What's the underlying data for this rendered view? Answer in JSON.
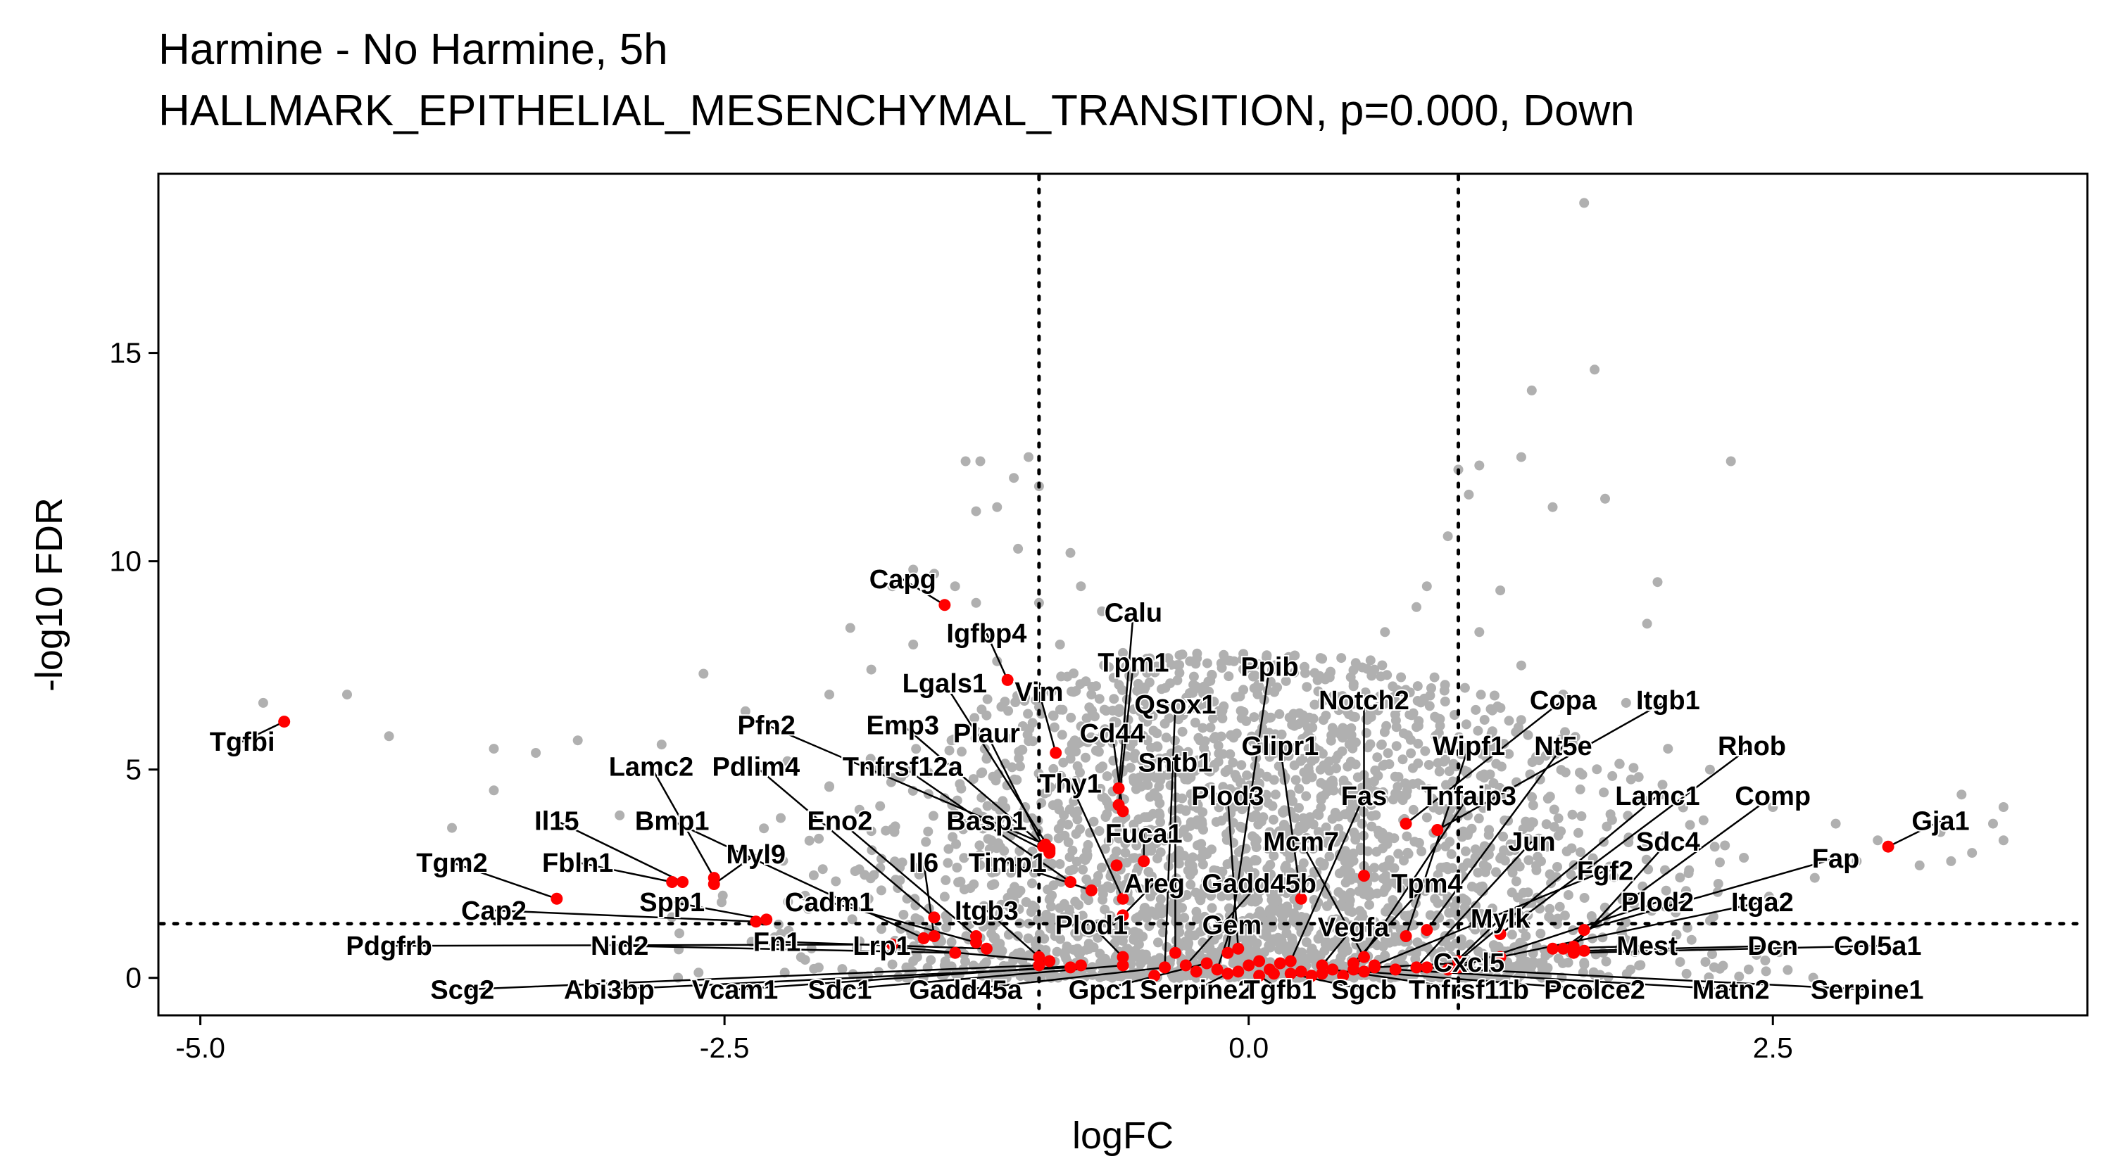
{
  "chart_data": {
    "type": "scatter",
    "title": "Harmine - No Harmine, 5h",
    "subtitle": "HALLMARK_EPITHELIAL_MESENCHYMAL_TRANSITION, p=0.000, Down",
    "xlabel": "logFC",
    "ylabel": "-log10 FDR",
    "xlim": [
      -5.2,
      4.0
    ],
    "ylim": [
      -0.9,
      19.3
    ],
    "x_ticks": [
      -5.0,
      -2.5,
      0.0,
      2.5
    ],
    "x_tick_labels": [
      "-5.0",
      "-2.5",
      "0.0",
      "2.5"
    ],
    "y_ticks": [
      0,
      5,
      10,
      15
    ],
    "y_tick_labels": [
      "0",
      "5",
      "10",
      "15"
    ],
    "thresholds": {
      "logfc": [
        -1.0,
        1.0
      ],
      "neg_log10_fdr": 1.3
    },
    "grid": false,
    "background_color": "#b0b0b0",
    "highlight_color": "#ff0000",
    "background_points": [
      [
        -4.7,
        6.6
      ],
      [
        -4.3,
        6.8
      ],
      [
        -4.1,
        5.8
      ],
      [
        -3.8,
        3.6
      ],
      [
        -3.6,
        5.5
      ],
      [
        -3.4,
        5.4
      ],
      [
        -3.6,
        4.5
      ],
      [
        -3.2,
        5.7
      ],
      [
        -3.0,
        3.9
      ],
      [
        -2.8,
        5.6
      ],
      [
        -2.6,
        7.3
      ],
      [
        -2.4,
        6.4
      ],
      [
        -2.2,
        5.2
      ],
      [
        -2.0,
        4.6
      ],
      [
        -1.9,
        8.4
      ],
      [
        -1.7,
        9.4
      ],
      [
        -1.6,
        9.8
      ],
      [
        -1.5,
        9.7
      ],
      [
        -1.4,
        9.4
      ],
      [
        -1.3,
        9.0
      ],
      [
        -1.35,
        12.4
      ],
      [
        -1.28,
        12.4
      ],
      [
        -1.2,
        11.3
      ],
      [
        -1.12,
        12.0
      ],
      [
        -1.05,
        12.5
      ],
      [
        -1.0,
        11.8
      ],
      [
        -1.3,
        11.2
      ],
      [
        -0.85,
        10.2
      ],
      [
        -0.8,
        9.4
      ],
      [
        -0.7,
        8.8
      ],
      [
        -0.6,
        7.8
      ],
      [
        -0.5,
        6.9
      ],
      [
        -0.4,
        6.1
      ],
      [
        -1.1,
        10.3
      ],
      [
        -1.0,
        9.0
      ],
      [
        -0.9,
        8.0
      ],
      [
        -1.6,
        8.0
      ],
      [
        -1.8,
        7.4
      ],
      [
        -2.0,
        6.8
      ],
      [
        -1.2,
        7.6
      ],
      [
        -0.75,
        6.8
      ],
      [
        1.6,
        18.6
      ],
      [
        1.65,
        14.6
      ],
      [
        1.35,
        14.1
      ],
      [
        1.3,
        12.5
      ],
      [
        2.3,
        12.4
      ],
      [
        1.7,
        11.5
      ],
      [
        1.45,
        11.3
      ],
      [
        1.0,
        12.2
      ],
      [
        1.1,
        12.3
      ],
      [
        1.05,
        11.6
      ],
      [
        0.95,
        10.6
      ],
      [
        0.85,
        9.4
      ],
      [
        1.95,
        9.5
      ],
      [
        1.9,
        8.5
      ],
      [
        1.2,
        9.3
      ],
      [
        1.1,
        8.3
      ],
      [
        0.65,
        8.3
      ],
      [
        0.8,
        8.9
      ],
      [
        0.5,
        7.0
      ],
      [
        0.4,
        6.0
      ],
      [
        0.3,
        5.2
      ],
      [
        0.2,
        4.4
      ],
      [
        0.1,
        3.5
      ],
      [
        0.0,
        2.6
      ],
      [
        1.3,
        7.5
      ],
      [
        1.5,
        6.8
      ],
      [
        1.8,
        6.6
      ],
      [
        2.0,
        5.5
      ],
      [
        2.2,
        5.0
      ],
      [
        2.5,
        4.1
      ],
      [
        2.8,
        3.7
      ],
      [
        3.0,
        3.3
      ],
      [
        3.3,
        3.5
      ],
      [
        3.4,
        4.4
      ],
      [
        3.55,
        3.7
      ],
      [
        3.6,
        3.3
      ],
      [
        2.9,
        2.8
      ],
      [
        3.2,
        2.7
      ],
      [
        3.35,
        2.8
      ],
      [
        3.45,
        3.0
      ],
      [
        2.7,
        2.4
      ],
      [
        3.6,
        4.1
      ]
    ],
    "highlighted_points": [
      {
        "label": "Capg",
        "x": -1.45,
        "y": 8.95
      },
      {
        "label": "Tgfbi",
        "x": -4.6,
        "y": 6.15
      },
      {
        "label": "Igfbp4",
        "x": -1.15,
        "y": 7.15
      },
      {
        "label": "Calu",
        "x": -0.62,
        "y": 4.55
      },
      {
        "label": "Tpm1",
        "x": -0.62,
        "y": 4.15
      },
      {
        "label": "Vim",
        "x": -0.92,
        "y": 5.4
      },
      {
        "label": "Lgals1",
        "x": -0.95,
        "y": 3.1
      },
      {
        "label": "Cd44",
        "x": -0.6,
        "y": 4.0
      },
      {
        "label": "Ppib",
        "x": -0.1,
        "y": 0.6
      },
      {
        "label": "Qsox1",
        "x": -0.4,
        "y": 0.25
      },
      {
        "label": "Notch2",
        "x": 0.55,
        "y": 2.45
      },
      {
        "label": "Copa",
        "x": 0.75,
        "y": 3.7
      },
      {
        "label": "Itgb1",
        "x": 0.9,
        "y": 3.55
      },
      {
        "label": "Pfn2",
        "x": -0.97,
        "y": 3.2
      },
      {
        "label": "Emp3",
        "x": -0.95,
        "y": 3.05
      },
      {
        "label": "Plaur",
        "x": -0.98,
        "y": 3.15
      },
      {
        "label": "Cd44",
        "x": -0.63,
        "y": 2.7
      },
      {
        "label": "Sntb1",
        "x": -0.35,
        "y": 0.6
      },
      {
        "label": "Glipr1",
        "x": 0.25,
        "y": 1.9
      },
      {
        "label": "Wipf1",
        "x": 0.75,
        "y": 1.0
      },
      {
        "label": "Nt5e",
        "x": 0.85,
        "y": 1.15
      },
      {
        "label": "Rhob",
        "x": 1.2,
        "y": 1.05
      },
      {
        "label": "Lamc2",
        "x": -2.55,
        "y": 2.4
      },
      {
        "label": "Pdlim4",
        "x": -1.5,
        "y": 1.45
      },
      {
        "label": "Tnfrsf12a",
        "x": -0.85,
        "y": 2.3
      },
      {
        "label": "Thy1",
        "x": -0.6,
        "y": 1.9
      },
      {
        "label": "Plod3",
        "x": -0.05,
        "y": 0.7
      },
      {
        "label": "Fas",
        "x": 0.2,
        "y": 0.4
      },
      {
        "label": "Tnfaip3",
        "x": 0.5,
        "y": 0.2
      },
      {
        "label": "Lamc1",
        "x": 1.0,
        "y": 0.4
      },
      {
        "label": "Comp",
        "x": 1.5,
        "y": 0.7
      },
      {
        "label": "Gja1",
        "x": 3.05,
        "y": 3.15
      },
      {
        "label": "Il15",
        "x": -2.7,
        "y": 2.3
      },
      {
        "label": "Bmp1",
        "x": -1.55,
        "y": 0.95
      },
      {
        "label": "Eno2",
        "x": -1.3,
        "y": 1.0
      },
      {
        "label": "Basp1",
        "x": -0.95,
        "y": 3.0
      },
      {
        "label": "Fuca1",
        "x": -0.5,
        "y": 2.8
      },
      {
        "label": "Mcm7",
        "x": 0.55,
        "y": 0.5
      },
      {
        "label": "Jun",
        "x": 0.8,
        "y": 0.25
      },
      {
        "label": "Sdc4",
        "x": 1.55,
        "y": 0.75
      },
      {
        "label": "Fap",
        "x": 1.6,
        "y": 1.15
      },
      {
        "label": "Tgm2",
        "x": -3.3,
        "y": 1.9
      },
      {
        "label": "Fbln1",
        "x": -2.75,
        "y": 2.3
      },
      {
        "label": "Myl9",
        "x": -2.55,
        "y": 2.25
      },
      {
        "label": "Il6",
        "x": -1.5,
        "y": 1.0
      },
      {
        "label": "Timp1",
        "x": -0.75,
        "y": 2.1
      },
      {
        "label": "Areg",
        "x": -0.6,
        "y": 1.5
      },
      {
        "label": "Gadd45b",
        "x": -0.3,
        "y": 0.3
      },
      {
        "label": "Tpm4",
        "x": 0.5,
        "y": 0.35
      },
      {
        "label": "Fgf2",
        "x": 0.6,
        "y": 0.3
      },
      {
        "label": "Plod2",
        "x": 1.0,
        "y": 0.25
      },
      {
        "label": "Itga2",
        "x": 1.2,
        "y": 0.5
      },
      {
        "label": "Cap2",
        "x": -2.35,
        "y": 1.35
      },
      {
        "label": "Spp1",
        "x": -2.3,
        "y": 1.4
      },
      {
        "label": "Cadm1",
        "x": -1.3,
        "y": 0.85
      },
      {
        "label": "Itgb3",
        "x": -1.0,
        "y": 0.5
      },
      {
        "label": "Plod1",
        "x": -0.6,
        "y": 0.5
      },
      {
        "label": "Gem",
        "x": -0.15,
        "y": 0.2
      },
      {
        "label": "Vegfa",
        "x": 0.35,
        "y": 0.3
      },
      {
        "label": "Mylk",
        "x": 0.95,
        "y": 0.2
      },
      {
        "label": "Mest",
        "x": 1.45,
        "y": 0.7
      },
      {
        "label": "Pdgfrb",
        "x": -1.7,
        "y": 0.8
      },
      {
        "label": "Nid2",
        "x": -1.4,
        "y": 0.6
      },
      {
        "label": "Fn1",
        "x": -1.25,
        "y": 0.7
      },
      {
        "label": "Lrp1",
        "x": -0.95,
        "y": 0.4
      },
      {
        "label": "Cxcl5",
        "x": 0.6,
        "y": 0.25
      },
      {
        "label": "Dcn",
        "x": 1.6,
        "y": 0.65
      },
      {
        "label": "Col5a1",
        "x": 1.55,
        "y": 0.6
      },
      {
        "label": "Scg2",
        "x": -1.0,
        "y": 0.3
      },
      {
        "label": "Abi3bp",
        "x": -0.85,
        "y": 0.25
      },
      {
        "label": "Vcam1",
        "x": -0.8,
        "y": 0.3
      },
      {
        "label": "Sdc1",
        "x": -0.6,
        "y": 0.3
      },
      {
        "label": "Gadd45a",
        "x": -0.4,
        "y": 0.25
      },
      {
        "label": "Gpc1",
        "x": -0.2,
        "y": 0.35
      },
      {
        "label": "Serpine2",
        "x": -0.1,
        "y": 0.1
      },
      {
        "label": "Tgfb1",
        "x": 0.05,
        "y": 0.05
      },
      {
        "label": "Sgcb",
        "x": 0.2,
        "y": 0.1
      },
      {
        "label": "Tnfrsf11b",
        "x": 0.4,
        "y": 0.2
      },
      {
        "label": "Pcolce2",
        "x": 0.55,
        "y": 0.15
      },
      {
        "label": "Matn2",
        "x": 0.7,
        "y": 0.2
      },
      {
        "label": "Serpine1",
        "x": 0.85,
        "y": 0.25
      },
      {
        "label": "",
        "x": 0.1,
        "y": 0.2
      },
      {
        "label": "",
        "x": -0.05,
        "y": 0.15
      },
      {
        "label": "",
        "x": 0.15,
        "y": 0.35
      },
      {
        "label": "",
        "x": 0.3,
        "y": 0.05
      },
      {
        "label": "",
        "x": -0.25,
        "y": 0.15
      },
      {
        "label": "",
        "x": 0.0,
        "y": 0.3
      },
      {
        "label": "",
        "x": 0.25,
        "y": 0.15
      },
      {
        "label": "",
        "x": 0.45,
        "y": 0.05
      },
      {
        "label": "",
        "x": -0.45,
        "y": 0.05
      },
      {
        "label": "",
        "x": 0.12,
        "y": 0.1
      },
      {
        "label": "",
        "x": 0.05,
        "y": 0.4
      },
      {
        "label": "",
        "x": 0.35,
        "y": 0.1
      }
    ],
    "label_positions": [
      {
        "label": "Capg",
        "x": -1.65,
        "y": 9.4
      },
      {
        "label": "Tgfbi",
        "x": -4.8,
        "y": 5.5
      },
      {
        "label": "Igfbp4",
        "x": -1.25,
        "y": 8.1
      },
      {
        "label": "Calu",
        "x": -0.55,
        "y": 8.6
      },
      {
        "label": "Tpm1",
        "x": -0.55,
        "y": 7.4
      },
      {
        "label": "Vim",
        "x": -1.0,
        "y": 6.7
      },
      {
        "label": "Lgals1",
        "x": -1.45,
        "y": 6.9
      },
      {
        "label": "Cd44",
        "x": -0.65,
        "y": 5.7
      },
      {
        "label": "Ppib",
        "x": 0.1,
        "y": 7.3
      },
      {
        "label": "Qsox1",
        "x": -0.35,
        "y": 6.4
      },
      {
        "label": "Notch2",
        "x": 0.55,
        "y": 6.5
      },
      {
        "label": "Copa",
        "x": 1.5,
        "y": 6.5
      },
      {
        "label": "Itgb1",
        "x": 2.0,
        "y": 6.5
      },
      {
        "label": "Pfn2",
        "x": -2.3,
        "y": 5.9
      },
      {
        "label": "Emp3",
        "x": -1.65,
        "y": 5.9
      },
      {
        "label": "Plaur",
        "x": -1.25,
        "y": 5.7
      },
      {
        "label": "Sntb1",
        "x": -0.35,
        "y": 5.0
      },
      {
        "label": "Glipr1",
        "x": 0.15,
        "y": 5.4
      },
      {
        "label": "Wipf1",
        "x": 1.05,
        "y": 5.4
      },
      {
        "label": "Nt5e",
        "x": 1.5,
        "y": 5.4
      },
      {
        "label": "Rhob",
        "x": 2.4,
        "y": 5.4
      },
      {
        "label": "Lamc2",
        "x": -2.85,
        "y": 4.9
      },
      {
        "label": "Pdlim4",
        "x": -2.35,
        "y": 4.9
      },
      {
        "label": "Tnfrsf12a",
        "x": -1.65,
        "y": 4.9
      },
      {
        "label": "Thy1",
        "x": -0.85,
        "y": 4.5
      },
      {
        "label": "Plod3",
        "x": -0.1,
        "y": 4.2
      },
      {
        "label": "Fas",
        "x": 0.55,
        "y": 4.2
      },
      {
        "label": "Tnfaip3",
        "x": 1.05,
        "y": 4.2
      },
      {
        "label": "Lamc1",
        "x": 1.95,
        "y": 4.2
      },
      {
        "label": "Comp",
        "x": 2.5,
        "y": 4.2
      },
      {
        "label": "Gja1",
        "x": 3.3,
        "y": 3.6
      },
      {
        "label": "Il15",
        "x": -3.3,
        "y": 3.6
      },
      {
        "label": "Bmp1",
        "x": -2.75,
        "y": 3.6
      },
      {
        "label": "Eno2",
        "x": -1.95,
        "y": 3.6
      },
      {
        "label": "Basp1",
        "x": -1.25,
        "y": 3.6
      },
      {
        "label": "Fuca1",
        "x": -0.5,
        "y": 3.3
      },
      {
        "label": "Mcm7",
        "x": 0.25,
        "y": 3.1
      },
      {
        "label": "Jun",
        "x": 1.35,
        "y": 3.1
      },
      {
        "label": "Sdc4",
        "x": 2.0,
        "y": 3.1
      },
      {
        "label": "Fap",
        "x": 2.8,
        "y": 2.7
      },
      {
        "label": "Tgm2",
        "x": -3.8,
        "y": 2.6
      },
      {
        "label": "Fbln1",
        "x": -3.2,
        "y": 2.6
      },
      {
        "label": "Myl9",
        "x": -2.35,
        "y": 2.8
      },
      {
        "label": "Il6",
        "x": -1.55,
        "y": 2.6
      },
      {
        "label": "Timp1",
        "x": -1.15,
        "y": 2.6
      },
      {
        "label": "Areg",
        "x": -0.45,
        "y": 2.1
      },
      {
        "label": "Gadd45b",
        "x": 0.05,
        "y": 2.1
      },
      {
        "label": "Tpm4",
        "x": 0.85,
        "y": 2.1
      },
      {
        "label": "Fgf2",
        "x": 1.7,
        "y": 2.4
      },
      {
        "label": "Plod2",
        "x": 1.95,
        "y": 1.65
      },
      {
        "label": "Itga2",
        "x": 2.45,
        "y": 1.65
      },
      {
        "label": "Cap2",
        "x": -3.6,
        "y": 1.45
      },
      {
        "label": "Spp1",
        "x": -2.75,
        "y": 1.65
      },
      {
        "label": "Cadm1",
        "x": -2.0,
        "y": 1.65
      },
      {
        "label": "Itgb3",
        "x": -1.25,
        "y": 1.45
      },
      {
        "label": "Plod1",
        "x": -0.75,
        "y": 1.1
      },
      {
        "label": "Gem",
        "x": -0.08,
        "y": 1.1
      },
      {
        "label": "Vegfa",
        "x": 0.5,
        "y": 1.05
      },
      {
        "label": "Mylk",
        "x": 1.2,
        "y": 1.25
      },
      {
        "label": "Mest",
        "x": 1.9,
        "y": 0.6
      },
      {
        "label": "Pdgfrb",
        "x": -4.1,
        "y": 0.6
      },
      {
        "label": "Nid2",
        "x": -3.0,
        "y": 0.6
      },
      {
        "label": "Fn1",
        "x": -2.25,
        "y": 0.7
      },
      {
        "label": "Lrp1",
        "x": -1.75,
        "y": 0.6
      },
      {
        "label": "Cxcl5",
        "x": 1.05,
        "y": 0.2
      },
      {
        "label": "Dcn",
        "x": 2.5,
        "y": 0.6
      },
      {
        "label": "Col5a1",
        "x": 3.0,
        "y": 0.6
      },
      {
        "label": "Scg2",
        "x": -3.75,
        "y": -0.45
      },
      {
        "label": "Abi3bp",
        "x": -3.05,
        "y": -0.45
      },
      {
        "label": "Vcam1",
        "x": -2.45,
        "y": -0.45
      },
      {
        "label": "Sdc1",
        "x": -1.95,
        "y": -0.45
      },
      {
        "label": "Gadd45a",
        "x": -1.35,
        "y": -0.45
      },
      {
        "label": "Gpc1",
        "x": -0.7,
        "y": -0.45
      },
      {
        "label": "Serpine2",
        "x": -0.25,
        "y": -0.45
      },
      {
        "label": "Tgfb1",
        "x": 0.15,
        "y": -0.45
      },
      {
        "label": "Sgcb",
        "x": 0.55,
        "y": -0.45
      },
      {
        "label": "Tnfrsf11b",
        "x": 1.05,
        "y": -0.45
      },
      {
        "label": "Pcolce2",
        "x": 1.65,
        "y": -0.45
      },
      {
        "label": "Matn2",
        "x": 2.3,
        "y": -0.45
      },
      {
        "label": "Serpine1",
        "x": 2.95,
        "y": -0.45
      }
    ]
  }
}
